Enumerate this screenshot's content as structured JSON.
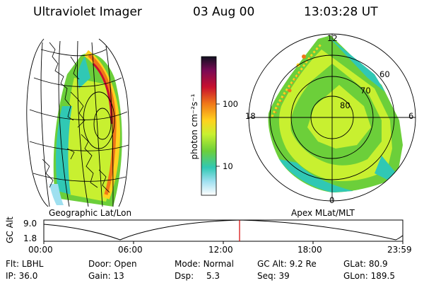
{
  "header": {
    "title": "Ultraviolet Imager",
    "date": "03 Aug 00",
    "time": "13:03:28 UT"
  },
  "colorbar": {
    "unit_label": "photon cm⁻²s⁻¹",
    "ticks": [
      "100",
      "10"
    ],
    "colors": [
      "#101020",
      "#7a0a55",
      "#c8102e",
      "#f07818",
      "#ffd21e",
      "#c8f030",
      "#6ccf3a",
      "#30c8b4",
      "#9fe0f0",
      "#ffffff"
    ]
  },
  "left_map": {
    "caption": "Geographic Lat/Lon"
  },
  "right_map": {
    "caption": "Apex MLat/MLT",
    "mlt_labels": {
      "top": "12",
      "left": "18",
      "right": "6",
      "bottom": "0"
    },
    "lat_labels": [
      "60",
      "70",
      "80"
    ]
  },
  "altitude_plot": {
    "ylabel": "GC Alt",
    "yticks": [
      "9.0",
      "1.8"
    ],
    "xticks": [
      "00:00",
      "06:00",
      "12:00",
      "18:00",
      "23:59"
    ],
    "current_time_marker_color": "#d40000"
  },
  "status": {
    "row1": [
      {
        "label": "Flt:",
        "value": "LBHL"
      },
      {
        "label": "Door:",
        "value": "Open"
      },
      {
        "label": "Mode:",
        "value": "Normal"
      },
      {
        "label": "GC Alt:",
        "value": "9.2 Re"
      },
      {
        "label": "GLat:",
        "value": "80.9"
      }
    ],
    "row2": [
      {
        "label": "IP:",
        "value": "36.0"
      },
      {
        "label": "Gain:",
        "value": "13"
      },
      {
        "label": "Dsp:",
        "value": "5.3"
      },
      {
        "label": "Seq:",
        "value": "39"
      },
      {
        "label": "GLon:",
        "value": "189.5"
      }
    ]
  }
}
